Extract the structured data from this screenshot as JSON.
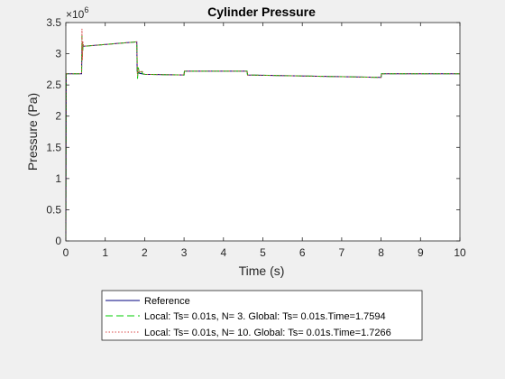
{
  "chart_data": {
    "type": "line",
    "title": "Cylinder Pressure",
    "xlabel": "Time (s)",
    "ylabel": "Pressure (Pa)",
    "y_exponent": "6",
    "xlim": [
      0,
      10
    ],
    "ylim": [
      0,
      3500000
    ],
    "xticks": [
      0,
      1,
      2,
      3,
      4,
      5,
      6,
      7,
      8,
      9,
      10
    ],
    "xtick_labels": [
      "0",
      "1",
      "2",
      "3",
      "4",
      "5",
      "6",
      "7",
      "8",
      "9",
      "10"
    ],
    "yticks": [
      0,
      500000,
      1000000,
      1500000,
      2000000,
      2500000,
      3000000,
      3500000
    ],
    "ytick_labels": [
      "0",
      "0.5",
      "1",
      "1.5",
      "2",
      "2.5",
      "3",
      "3.5"
    ],
    "grid": false,
    "legend_position": "below plot",
    "series": [
      {
        "name": "Reference",
        "color": "#00007f",
        "style": "solid",
        "x": [
          0,
          0.01,
          0.02,
          0.4,
          0.41,
          0.43,
          1.8,
          1.81,
          1.85,
          2.0,
          3.0,
          3.01,
          4.6,
          4.61,
          8.0,
          8.01,
          10.0
        ],
        "y": [
          0,
          2680000,
          2680000,
          2680000,
          3100000,
          3120000,
          3190000,
          2720000,
          2690000,
          2670000,
          2660000,
          2720000,
          2720000,
          2660000,
          2620000,
          2680000,
          2680000
        ]
      },
      {
        "name": "Local: Ts= 0.01s, N= 3. Global: Ts= 0.01s.Time=1.7594",
        "color": "#00cc00",
        "style": "dashed",
        "x": [
          0,
          0.01,
          0.02,
          0.4,
          0.41,
          0.42,
          0.44,
          0.46,
          1.8,
          1.82,
          1.84,
          1.86,
          1.9,
          1.95,
          2.0,
          3.0,
          3.01,
          4.6,
          4.61,
          8.0,
          8.01,
          10.0
        ],
        "y": [
          0,
          2680000,
          2680000,
          2680000,
          3300000,
          2950000,
          3150000,
          3120000,
          3190000,
          2600000,
          2780000,
          2700000,
          2740000,
          2680000,
          2670000,
          2660000,
          2720000,
          2720000,
          2660000,
          2620000,
          2680000,
          2680000
        ]
      },
      {
        "name": "Local: Ts= 0.01s, N= 10. Global: Ts= 0.01s.Time=1.7266",
        "color": "#d94a4a",
        "style": "dotted",
        "x": [
          0,
          0.01,
          0.02,
          0.4,
          0.41,
          0.42,
          0.43,
          0.45,
          1.8,
          1.82,
          1.84,
          1.87,
          1.92,
          2.0,
          3.0,
          3.01,
          4.6,
          4.61,
          8.0,
          8.01,
          10.0
        ],
        "y": [
          0,
          2680000,
          2680000,
          2680000,
          3400000,
          2900000,
          3200000,
          3120000,
          3190000,
          2650000,
          2760000,
          2690000,
          2730000,
          2670000,
          2660000,
          2720000,
          2720000,
          2660000,
          2620000,
          2680000,
          2680000
        ]
      }
    ]
  }
}
